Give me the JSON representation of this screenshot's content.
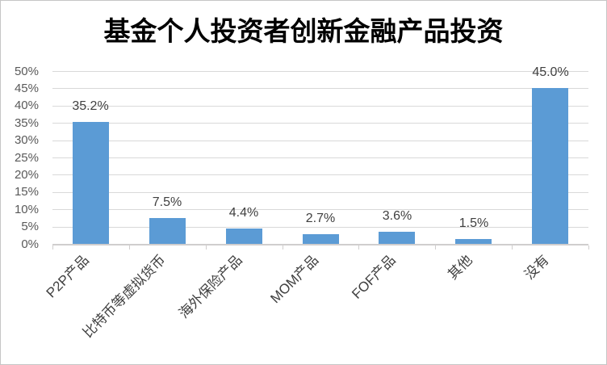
{
  "chart_data": {
    "type": "bar",
    "title": "基金个人投资者创新金融产品投资",
    "categories": [
      "P2P产品",
      "比特币等虚拟货币",
      "海外保险产品",
      "MOM产品",
      "FOF产品",
      "其他",
      "没有"
    ],
    "values": [
      35.2,
      7.5,
      4.4,
      2.7,
      3.6,
      1.5,
      45.0
    ],
    "data_labels": [
      "35.2%",
      "7.5%",
      "4.4%",
      "2.7%",
      "3.6%",
      "1.5%",
      "45.0%"
    ],
    "xlabel": "",
    "ylabel": "",
    "ylim": [
      0,
      50
    ],
    "ytick_step": 5,
    "ytick_labels": [
      "0%",
      "5%",
      "10%",
      "15%",
      "20%",
      "25%",
      "30%",
      "35%",
      "40%",
      "45%",
      "50%"
    ],
    "grid": true,
    "legend": "none",
    "bar_color": "#5b9bd5"
  }
}
